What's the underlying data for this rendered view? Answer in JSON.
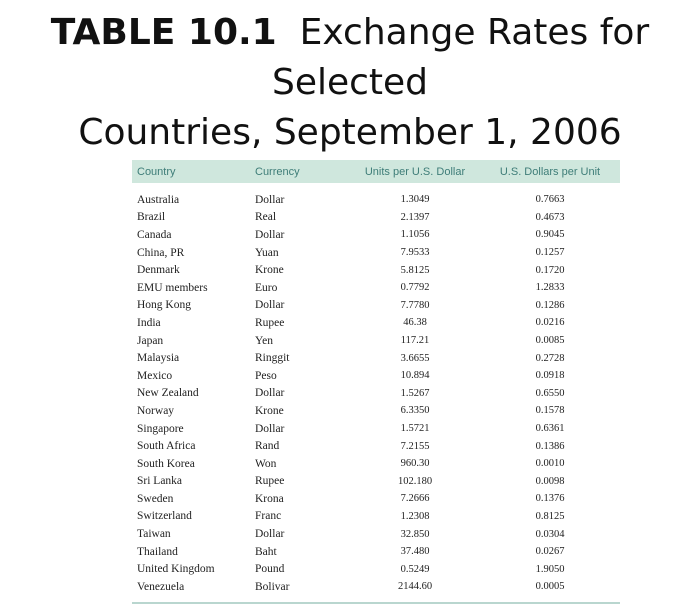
{
  "title": {
    "bold": "TABLE 10.1",
    "text": "Exchange Rates for Selected Countries, September 1, 2006"
  },
  "table": {
    "headers": [
      "Country",
      "Currency",
      "Units per U.S. Dollar",
      "U.S. Dollars per Unit"
    ],
    "rows": [
      {
        "country": "Australia",
        "currency": "Dollar",
        "units": "1.3049",
        "usd": "0.7663"
      },
      {
        "country": "Brazil",
        "currency": "Real",
        "units": "2.1397",
        "usd": "0.4673"
      },
      {
        "country": "Canada",
        "currency": "Dollar",
        "units": "1.1056",
        "usd": "0.9045"
      },
      {
        "country": "China, PR",
        "currency": "Yuan",
        "units": "7.9533",
        "usd": "0.1257"
      },
      {
        "country": "Denmark",
        "currency": "Krone",
        "units": "5.8125",
        "usd": "0.1720"
      },
      {
        "country": "EMU members",
        "currency": "Euro",
        "units": "0.7792",
        "usd": "1.2833"
      },
      {
        "country": "Hong Kong",
        "currency": "Dollar",
        "units": "7.7780",
        "usd": "0.1286"
      },
      {
        "country": "India",
        "currency": "Rupee",
        "units": "46.38",
        "usd": "0.0216"
      },
      {
        "country": "Japan",
        "currency": "Yen",
        "units": "117.21",
        "usd": "0.0085"
      },
      {
        "country": "Malaysia",
        "currency": "Ringgit",
        "units": "3.6655",
        "usd": "0.2728"
      },
      {
        "country": "Mexico",
        "currency": "Peso",
        "units": "10.894",
        "usd": "0.0918"
      },
      {
        "country": "New Zealand",
        "currency": "Dollar",
        "units": "1.5267",
        "usd": "0.6550"
      },
      {
        "country": "Norway",
        "currency": "Krone",
        "units": "6.3350",
        "usd": "0.1578"
      },
      {
        "country": "Singapore",
        "currency": "Dollar",
        "units": "1.5721",
        "usd": "0.6361"
      },
      {
        "country": "South Africa",
        "currency": "Rand",
        "units": "7.2155",
        "usd": "0.1386"
      },
      {
        "country": "South Korea",
        "currency": "Won",
        "units": "960.30",
        "usd": "0.0010"
      },
      {
        "country": "Sri Lanka",
        "currency": "Rupee",
        "units": "102.180",
        "usd": "0.0098"
      },
      {
        "country": "Sweden",
        "currency": "Krona",
        "units": "7.2666",
        "usd": "0.1376"
      },
      {
        "country": "Switzerland",
        "currency": "Franc",
        "units": "1.2308",
        "usd": "0.8125"
      },
      {
        "country": "Taiwan",
        "currency": "Dollar",
        "units": "32.850",
        "usd": "0.0304"
      },
      {
        "country": "Thailand",
        "currency": "Baht",
        "units": "37.480",
        "usd": "0.0267"
      },
      {
        "country": "United Kingdom",
        "currency": "Pound",
        "units": "0.5249",
        "usd": "1.9050"
      },
      {
        "country": "Venezuela",
        "currency": "Bolivar",
        "units": "2144.60",
        "usd": "0.0005"
      }
    ]
  }
}
